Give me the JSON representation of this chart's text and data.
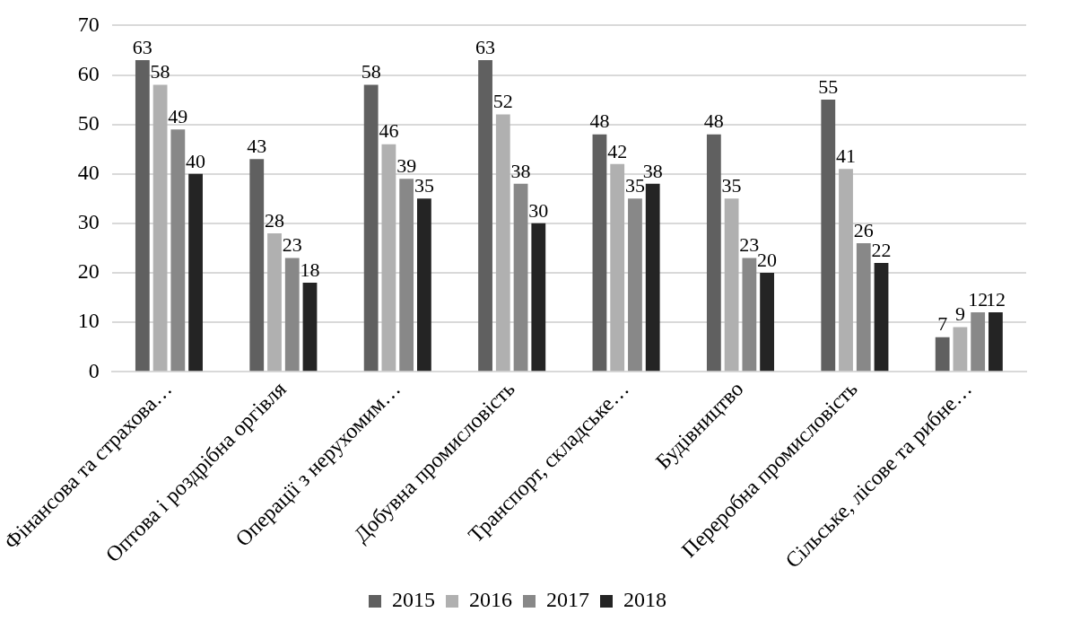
{
  "chart_data": {
    "type": "bar",
    "categories": [
      "Фінансова та страхова…",
      "Оптова і роздрібна оргівля",
      "Операції з нерухомим…",
      "Добувна промисловість",
      "Транспорт, складське…",
      "Будівництво",
      "Переробна промисловість",
      "Сільське, лісове та рибне…"
    ],
    "series": [
      {
        "name": "2015",
        "color": "#606060",
        "values": [
          63,
          43,
          58,
          63,
          48,
          48,
          55,
          7
        ]
      },
      {
        "name": "2016",
        "color": "#b0b0b0",
        "values": [
          58,
          28,
          46,
          52,
          42,
          35,
          41,
          9
        ]
      },
      {
        "name": "2017",
        "color": "#888888",
        "values": [
          49,
          23,
          39,
          38,
          35,
          23,
          26,
          12
        ]
      },
      {
        "name": "2018",
        "color": "#242424",
        "values": [
          40,
          18,
          35,
          30,
          38,
          20,
          22,
          12
        ]
      }
    ],
    "ylim": [
      0,
      70
    ],
    "yticks": [
      0,
      10,
      20,
      30,
      40,
      50,
      60,
      70
    ],
    "grid": "y",
    "legend": "bottom",
    "data_labels": true
  }
}
